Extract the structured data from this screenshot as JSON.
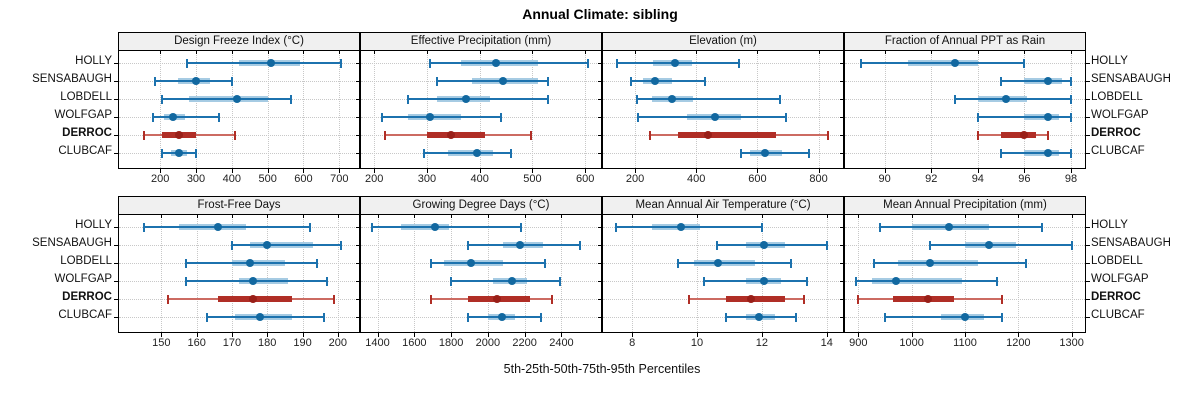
{
  "title": "Annual Climate: sibling",
  "caption": "5th-25th-50th-75th-95th Percentiles",
  "stations": [
    "HOLLY",
    "SENSABAUGH",
    "LOBDELL",
    "WOLFGAP",
    "DERROC",
    "CLUBCAF"
  ],
  "highlight_station": "DERROC",
  "colors": {
    "normal": {
      "line": "#1C72AE",
      "band": "#A6CBE3",
      "dot": "#1268A0",
      "cap": "#1C72AE"
    },
    "highlight": {
      "line": "#CC6B62",
      "band": "#B02E26",
      "dot": "#991F18",
      "cap": "#B02E26"
    },
    "grid": "#C8C8C8",
    "strip_bg": "#F0F0F0",
    "border": "#000000",
    "text": "#111111",
    "tick_text": "#222222"
  },
  "chart_data": {
    "type": "dotplot",
    "note": "Horizontal percentile interval plots; values per station are [5th,25th,50th,75th,95th] percentiles",
    "percentiles": [
      5,
      25,
      50,
      75,
      95
    ],
    "grid": "dotted",
    "panels": [
      {
        "title": "Design Freeze Index (°C)",
        "row": 0,
        "col": 0,
        "xlim": [
          85,
          755
        ],
        "ticks": [
          200,
          300,
          400,
          500,
          600,
          700
        ],
        "series": [
          {
            "station": "HOLLY",
            "values": [
              275,
              420,
              510,
              590,
              705
            ]
          },
          {
            "station": "SENSABAUGH",
            "values": [
              185,
              250,
              300,
              340,
              400
            ]
          },
          {
            "station": "LOBDELL",
            "values": [
              205,
              280,
              415,
              500,
              565
            ]
          },
          {
            "station": "WOLFGAP",
            "values": [
              180,
              210,
              235,
              270,
              365
            ]
          },
          {
            "station": "DERROC",
            "values": [
              155,
              205,
              253,
              300,
              410
            ]
          },
          {
            "station": "CLUBCAF",
            "values": [
              205,
              230,
              252,
              275,
              300
            ]
          }
        ]
      },
      {
        "title": "Effective Precipitation (mm)",
        "row": 0,
        "col": 1,
        "xlim": [
          175,
          630
        ],
        "ticks": [
          200,
          300,
          400,
          500,
          600
        ],
        "series": [
          {
            "station": "HOLLY",
            "values": [
              305,
              365,
              430,
              510,
              605
            ]
          },
          {
            "station": "SENSABAUGH",
            "values": [
              320,
              385,
              445,
              510,
              530
            ]
          },
          {
            "station": "LOBDELL",
            "values": [
              265,
              320,
              375,
              420,
              530
            ]
          },
          {
            "station": "WOLFGAP",
            "values": [
              215,
              265,
              305,
              365,
              440
            ]
          },
          {
            "station": "DERROC",
            "values": [
              220,
              300,
              345,
              410,
              498
            ]
          },
          {
            "station": "CLUBCAF",
            "values": [
              295,
              340,
              395,
              425,
              460
            ]
          }
        ]
      },
      {
        "title": "Elevation (m)",
        "row": 0,
        "col": 2,
        "xlim": [
          95,
          880
        ],
        "ticks": [
          200,
          400,
          600,
          800
        ],
        "series": [
          {
            "station": "HOLLY",
            "values": [
              140,
              260,
              330,
              385,
              540
            ]
          },
          {
            "station": "SENSABAUGH",
            "values": [
              185,
              225,
              265,
              320,
              430
            ]
          },
          {
            "station": "LOBDELL",
            "values": [
              205,
              255,
              320,
              390,
              675
            ]
          },
          {
            "station": "WOLFGAP",
            "values": [
              210,
              370,
              460,
              545,
              695
            ]
          },
          {
            "station": "DERROC",
            "values": [
              250,
              340,
              440,
              660,
              830
            ]
          },
          {
            "station": "CLUBCAF",
            "values": [
              545,
              575,
              625,
              680,
              770
            ]
          }
        ]
      },
      {
        "title": "Fraction of Annual PPT as Rain",
        "row": 0,
        "col": 3,
        "xlim": [
          88.3,
          98.6
        ],
        "ticks": [
          90,
          92,
          94,
          96,
          98
        ],
        "series": [
          {
            "station": "HOLLY",
            "values": [
              89,
              91,
              93,
              94,
              96
            ]
          },
          {
            "station": "SENSABAUGH",
            "values": [
              95,
              96,
              97,
              97.6,
              98
            ]
          },
          {
            "station": "LOBDELL",
            "values": [
              93,
              94,
              95.2,
              96.1,
              98
            ]
          },
          {
            "station": "WOLFGAP",
            "values": [
              94,
              96,
              97,
              97.5,
              98
            ]
          },
          {
            "station": "DERROC",
            "values": [
              94,
              95,
              96,
              96.5,
              97
            ]
          },
          {
            "station": "CLUBCAF",
            "values": [
              95,
              96,
              97,
              97.5,
              98
            ]
          }
        ]
      },
      {
        "title": "Frost-Free Days",
        "row": 1,
        "col": 0,
        "xlim": [
          138,
          206
        ],
        "ticks": [
          150,
          160,
          170,
          180,
          190,
          200
        ],
        "series": [
          {
            "station": "HOLLY",
            "values": [
              145,
              155,
              166,
              174,
              192
            ]
          },
          {
            "station": "SENSABAUGH",
            "values": [
              170,
              175,
              180,
              193,
              201
            ]
          },
          {
            "station": "LOBDELL",
            "values": [
              157,
              170,
              175,
              185,
              194
            ]
          },
          {
            "station": "WOLFGAP",
            "values": [
              157,
              172,
              176,
              186,
              197
            ]
          },
          {
            "station": "DERROC",
            "values": [
              152,
              166,
              176,
              187,
              199
            ]
          },
          {
            "station": "CLUBCAF",
            "values": [
              163,
              171,
              178,
              187,
              196
            ]
          }
        ]
      },
      {
        "title": "Growing Degree Days (°C)",
        "row": 1,
        "col": 1,
        "xlim": [
          1310,
          2615
        ],
        "ticks": [
          1400,
          1600,
          1800,
          2000,
          2200,
          2400
        ],
        "series": [
          {
            "station": "HOLLY",
            "values": [
              1370,
              1530,
              1710,
              1790,
              2180
            ]
          },
          {
            "station": "SENSABAUGH",
            "values": [
              1890,
              2080,
              2175,
              2300,
              2500
            ]
          },
          {
            "station": "LOBDELL",
            "values": [
              1690,
              1760,
              1910,
              2080,
              2310
            ]
          },
          {
            "station": "WOLFGAP",
            "values": [
              1800,
              2030,
              2130,
              2210,
              2390
            ]
          },
          {
            "station": "DERROC",
            "values": [
              1690,
              1890,
              2050,
              2230,
              2350
            ]
          },
          {
            "station": "CLUBCAF",
            "values": [
              1890,
              2000,
              2075,
              2150,
              2290
            ]
          }
        ]
      },
      {
        "title": "Mean Annual Air Temperature (°C)",
        "row": 1,
        "col": 2,
        "xlim": [
          7.1,
          14.5
        ],
        "ticks": [
          8,
          10,
          12,
          14
        ],
        "series": [
          {
            "station": "HOLLY",
            "values": [
              7.5,
              8.6,
              9.5,
              10.1,
              12.0
            ]
          },
          {
            "station": "SENSABAUGH",
            "values": [
              10.6,
              11.5,
              12.05,
              12.7,
              14.0
            ]
          },
          {
            "station": "LOBDELL",
            "values": [
              9.4,
              9.9,
              10.65,
              11.8,
              12.9
            ]
          },
          {
            "station": "WOLFGAP",
            "values": [
              10.2,
              11.5,
              12.05,
              12.6,
              13.4
            ]
          },
          {
            "station": "DERROC",
            "values": [
              9.75,
              10.9,
              11.65,
              12.7,
              13.3
            ]
          },
          {
            "station": "CLUBCAF",
            "values": [
              10.9,
              11.5,
              11.9,
              12.4,
              13.05
            ]
          }
        ]
      },
      {
        "title": "Mean Annual Precipitation (mm)",
        "row": 1,
        "col": 3,
        "xlim": [
          875,
          1325
        ],
        "ticks": [
          900,
          1000,
          1100,
          1200,
          1300
        ],
        "series": [
          {
            "station": "HOLLY",
            "values": [
              940,
              1000,
              1070,
              1145,
              1245
            ]
          },
          {
            "station": "SENSABAUGH",
            "values": [
              1035,
              1100,
              1145,
              1195,
              1300
            ]
          },
          {
            "station": "LOBDELL",
            "values": [
              930,
              975,
              1035,
              1125,
              1215
            ]
          },
          {
            "station": "WOLFGAP",
            "values": [
              895,
              925,
              970,
              1095,
              1160
            ]
          },
          {
            "station": "DERROC",
            "values": [
              900,
              965,
              1030,
              1080,
              1170
            ]
          },
          {
            "station": "CLUBCAF",
            "values": [
              950,
              1055,
              1100,
              1135,
              1170
            ]
          }
        ]
      }
    ]
  }
}
